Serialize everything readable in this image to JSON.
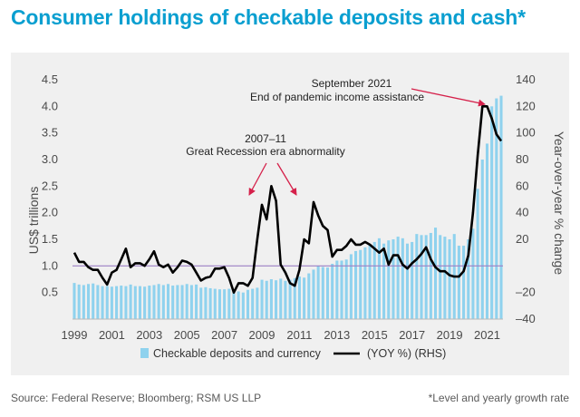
{
  "title": "Consumer holdings of checkable deposits and cash*",
  "source": "Source: Federal Reserve; Bloomberg; RSM US LLP",
  "footnote": "*Level and yearly growth rate",
  "colors": {
    "title": "#0a9fd0",
    "bars": "#8fd2ee",
    "line": "#000000",
    "ref_line": "#9c7fc4",
    "arrow": "#d5204a"
  },
  "chart_data": {
    "type": "bar+line",
    "title": "Consumer holdings of checkable deposits and cash*",
    "ylabel": "US$ trillions",
    "y2label": "Year-over-year % change",
    "ylim": [
      0,
      4.5
    ],
    "y2lim": [
      -40,
      140
    ],
    "xlim": [
      1999,
      2021.75
    ],
    "yticks": [
      "4.5",
      "4.0",
      "3.5",
      "3.0",
      "2.5",
      "2.0",
      "1.5",
      "1.0",
      "0.5"
    ],
    "y2ticks": [
      "140",
      "120",
      "100",
      "80",
      "60",
      "40",
      "20",
      "–20",
      "–40"
    ],
    "xticks": [
      "1999",
      "2001",
      "2003",
      "2005",
      "2007",
      "2009",
      "2011",
      "2013",
      "2015",
      "2017",
      "2019",
      "2021"
    ],
    "ref_line_y2": 0,
    "legend": {
      "bars": "Checkable deposits and currency",
      "line": "(YOY %) (RHS)"
    },
    "series": [
      {
        "name": "Checkable deposits and currency",
        "axis": "left",
        "type": "bar",
        "points": [
          [
            1999.0,
            0.68
          ],
          [
            1999.25,
            0.65
          ],
          [
            1999.5,
            0.64
          ],
          [
            1999.75,
            0.66
          ],
          [
            2000.0,
            0.67
          ],
          [
            2000.25,
            0.64
          ],
          [
            2000.5,
            0.62
          ],
          [
            2000.75,
            0.62
          ],
          [
            2001.0,
            0.61
          ],
          [
            2001.25,
            0.62
          ],
          [
            2001.5,
            0.63
          ],
          [
            2001.75,
            0.62
          ],
          [
            2002.0,
            0.65
          ],
          [
            2002.25,
            0.62
          ],
          [
            2002.5,
            0.62
          ],
          [
            2002.75,
            0.61
          ],
          [
            2003.0,
            0.63
          ],
          [
            2003.25,
            0.64
          ],
          [
            2003.5,
            0.66
          ],
          [
            2003.75,
            0.64
          ],
          [
            2004.0,
            0.66
          ],
          [
            2004.25,
            0.63
          ],
          [
            2004.5,
            0.64
          ],
          [
            2004.75,
            0.64
          ],
          [
            2005.0,
            0.66
          ],
          [
            2005.25,
            0.64
          ],
          [
            2005.5,
            0.65
          ],
          [
            2005.75,
            0.59
          ],
          [
            2006.0,
            0.6
          ],
          [
            2006.25,
            0.58
          ],
          [
            2006.5,
            0.57
          ],
          [
            2006.75,
            0.56
          ],
          [
            2007.0,
            0.56
          ],
          [
            2007.25,
            0.57
          ],
          [
            2007.5,
            0.56
          ],
          [
            2007.75,
            0.52
          ],
          [
            2008.0,
            0.5
          ],
          [
            2008.25,
            0.55
          ],
          [
            2008.5,
            0.57
          ],
          [
            2008.75,
            0.59
          ],
          [
            2009.0,
            0.74
          ],
          [
            2009.25,
            0.72
          ],
          [
            2009.5,
            0.75
          ],
          [
            2009.75,
            0.73
          ],
          [
            2010.0,
            0.76
          ],
          [
            2010.25,
            0.72
          ],
          [
            2010.5,
            0.74
          ],
          [
            2010.75,
            0.77
          ],
          [
            2011.0,
            0.8
          ],
          [
            2011.25,
            0.78
          ],
          [
            2011.5,
            0.86
          ],
          [
            2011.75,
            0.93
          ],
          [
            2012.0,
            1.0
          ],
          [
            2012.25,
            0.98
          ],
          [
            2012.5,
            0.97
          ],
          [
            2012.75,
            1.04
          ],
          [
            2013.0,
            1.1
          ],
          [
            2013.25,
            1.1
          ],
          [
            2013.5,
            1.12
          ],
          [
            2013.75,
            1.22
          ],
          [
            2014.0,
            1.28
          ],
          [
            2014.25,
            1.3
          ],
          [
            2014.5,
            1.35
          ],
          [
            2014.75,
            1.4
          ],
          [
            2015.0,
            1.45
          ],
          [
            2015.25,
            1.52
          ],
          [
            2015.5,
            1.42
          ],
          [
            2015.75,
            1.48
          ],
          [
            2016.0,
            1.5
          ],
          [
            2016.25,
            1.55
          ],
          [
            2016.5,
            1.52
          ],
          [
            2016.75,
            1.42
          ],
          [
            2017.0,
            1.45
          ],
          [
            2017.25,
            1.6
          ],
          [
            2017.5,
            1.58
          ],
          [
            2017.75,
            1.58
          ],
          [
            2018.0,
            1.62
          ],
          [
            2018.25,
            1.72
          ],
          [
            2018.5,
            1.58
          ],
          [
            2018.75,
            1.55
          ],
          [
            2019.0,
            1.5
          ],
          [
            2019.25,
            1.6
          ],
          [
            2019.5,
            1.38
          ],
          [
            2019.75,
            1.38
          ],
          [
            2020.0,
            1.5
          ],
          [
            2020.25,
            1.7
          ],
          [
            2020.5,
            2.45
          ],
          [
            2020.75,
            3.0
          ],
          [
            2021.0,
            3.3
          ],
          [
            2021.25,
            4.0
          ],
          [
            2021.5,
            4.15
          ],
          [
            2021.75,
            4.2
          ]
        ]
      },
      {
        "name": "(YOY %) (RHS)",
        "axis": "right",
        "type": "line",
        "points": [
          [
            1999.0,
            10
          ],
          [
            1999.25,
            3
          ],
          [
            1999.5,
            3
          ],
          [
            1999.75,
            -1
          ],
          [
            2000.0,
            -3
          ],
          [
            2000.25,
            -3
          ],
          [
            2000.5,
            -9
          ],
          [
            2000.75,
            -14
          ],
          [
            2001.0,
            -5
          ],
          [
            2001.25,
            -3
          ],
          [
            2001.5,
            5
          ],
          [
            2001.75,
            13
          ],
          [
            2002.0,
            -1
          ],
          [
            2002.25,
            2
          ],
          [
            2002.5,
            2
          ],
          [
            2002.75,
            0
          ],
          [
            2003.0,
            5
          ],
          [
            2003.25,
            11
          ],
          [
            2003.5,
            1
          ],
          [
            2003.75,
            -1
          ],
          [
            2004.0,
            1
          ],
          [
            2004.25,
            -5
          ],
          [
            2004.5,
            -1
          ],
          [
            2004.75,
            4
          ],
          [
            2005.0,
            3
          ],
          [
            2005.25,
            1
          ],
          [
            2005.5,
            -5
          ],
          [
            2005.75,
            -11
          ],
          [
            2006.0,
            -9
          ],
          [
            2006.25,
            -8
          ],
          [
            2006.5,
            -2
          ],
          [
            2006.75,
            -2
          ],
          [
            2007.0,
            -1
          ],
          [
            2007.25,
            -9
          ],
          [
            2007.5,
            -20
          ],
          [
            2007.75,
            -13
          ],
          [
            2008.0,
            -13
          ],
          [
            2008.25,
            -15
          ],
          [
            2008.5,
            -9
          ],
          [
            2008.75,
            20
          ],
          [
            2009.0,
            46
          ],
          [
            2009.25,
            35
          ],
          [
            2009.5,
            60
          ],
          [
            2009.75,
            49
          ],
          [
            2010.0,
            1
          ],
          [
            2010.25,
            -5
          ],
          [
            2010.5,
            -13
          ],
          [
            2010.75,
            -15
          ],
          [
            2011.0,
            -3
          ],
          [
            2011.25,
            20
          ],
          [
            2011.5,
            17
          ],
          [
            2011.75,
            48
          ],
          [
            2012.0,
            38
          ],
          [
            2012.25,
            30
          ],
          [
            2012.5,
            27
          ],
          [
            2012.75,
            7
          ],
          [
            2013.0,
            12
          ],
          [
            2013.25,
            12
          ],
          [
            2013.5,
            15
          ],
          [
            2013.75,
            20
          ],
          [
            2014.0,
            16
          ],
          [
            2014.25,
            16
          ],
          [
            2014.5,
            18
          ],
          [
            2014.75,
            16
          ],
          [
            2015.0,
            13
          ],
          [
            2015.25,
            10
          ],
          [
            2015.5,
            13
          ],
          [
            2015.75,
            1
          ],
          [
            2016.0,
            8
          ],
          [
            2016.25,
            8
          ],
          [
            2016.5,
            1
          ],
          [
            2016.75,
            -2
          ],
          [
            2017.0,
            2
          ],
          [
            2017.25,
            5
          ],
          [
            2017.5,
            9
          ],
          [
            2017.75,
            14
          ],
          [
            2018.0,
            5
          ],
          [
            2018.25,
            -1
          ],
          [
            2018.5,
            -4
          ],
          [
            2018.75,
            -4
          ],
          [
            2019.0,
            -7
          ],
          [
            2019.25,
            -8
          ],
          [
            2019.5,
            -8
          ],
          [
            2019.75,
            -4
          ],
          [
            2020.0,
            8
          ],
          [
            2020.25,
            40
          ],
          [
            2020.5,
            83
          ],
          [
            2020.75,
            120
          ],
          [
            2021.0,
            120
          ],
          [
            2021.25,
            111
          ],
          [
            2021.5,
            99
          ],
          [
            2021.75,
            94
          ]
        ]
      }
    ],
    "annotations": [
      {
        "id": "pandemic",
        "lines": [
          "September 2021",
          "End of pandemic income assistance"
        ]
      },
      {
        "id": "recession",
        "lines": [
          "2007–11",
          "Great Recession era abnormality"
        ]
      }
    ]
  }
}
